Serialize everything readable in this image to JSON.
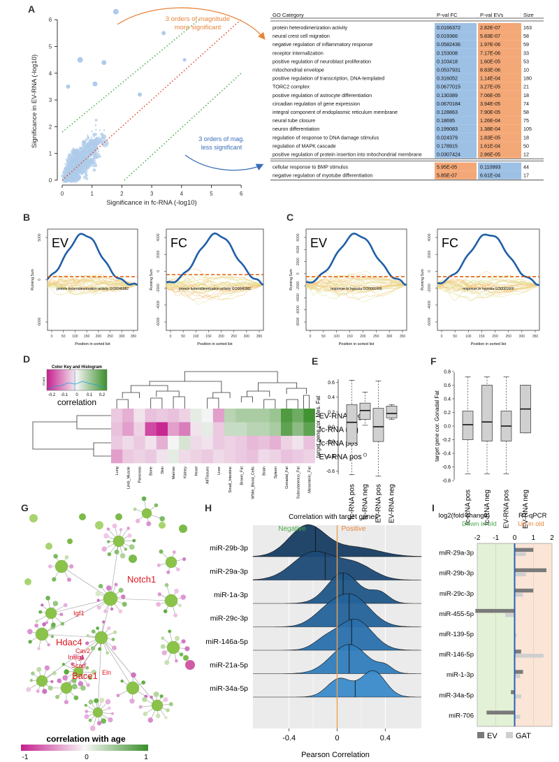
{
  "panel_labels": {
    "A": "A",
    "B": "B",
    "C": "C",
    "D": "D",
    "E": "E",
    "F": "F",
    "G": "G",
    "H": "H",
    "I": "I"
  },
  "colors": {
    "blue": "#9dc0e5",
    "orange": "#f4a877",
    "pink": "#c61f8e",
    "green": "#3a8f2a",
    "curve": "#1f5fa8",
    "dash": "#e06010"
  },
  "panelA": {
    "scatter": {
      "xlabel": "Significance in fc-RNA (-log10)",
      "ylabel": "Significance in EV-RNA (-log10)",
      "xticks": [
        "0",
        "1",
        "2",
        "3",
        "4",
        "5",
        "6"
      ],
      "yticks": [
        "0",
        "1",
        "2",
        "3",
        "4",
        "5",
        "6"
      ],
      "annot_top": [
        "3 orders of magnitude",
        "more significant"
      ],
      "annot_bottom": [
        "3 orders of mag.",
        "less significant"
      ]
    },
    "table": {
      "headers": [
        "GO Category",
        "P-val FC",
        "P-val EVs",
        "Size"
      ],
      "rows": [
        {
          "cat": "protein heterodimerization activity",
          "fc": "0.0166372",
          "ev": "2.82E-07",
          "size": "163"
        },
        {
          "cat": "neural crest cell migration",
          "fc": "0.019366",
          "ev": "5.83E-07",
          "size": "58"
        },
        {
          "cat": "negative regulation of inflammatory response",
          "fc": "0.0582436",
          "ev": "1.97E-06",
          "size": "59"
        },
        {
          "cat": "receptor internalization",
          "fc": "0.153008",
          "ev": "7.17E-06",
          "size": "33"
        },
        {
          "cat": "positive regulation of neuroblast proliferation",
          "fc": "0.103418",
          "ev": "1.60E-05",
          "size": "53"
        },
        {
          "cat": "mitochondrial envelope",
          "fc": "0.0537931",
          "ev": "8.83E-06",
          "size": "10"
        },
        {
          "cat": "positive regulation of transcription, DNA-templated",
          "fc": "0.316052",
          "ev": "1.14E-04",
          "size": "180"
        },
        {
          "cat": "TORC2 complex",
          "fc": "0.0677015",
          "ev": "3.27E-05",
          "size": "21"
        },
        {
          "cat": "positive regulation of astrocyte differentiation",
          "fc": "0.130389",
          "ev": "7.06E-05",
          "size": "18"
        },
        {
          "cat": "circadian regulation of gene expression",
          "fc": "0.0670184",
          "ev": "3.94E-05",
          "size": "74"
        },
        {
          "cat": "integral component of endoplasmic reticulum membrane",
          "fc": "0.128863",
          "ev": "7.90E-05",
          "size": "58"
        },
        {
          "cat": "neural tube closure",
          "fc": "0.18695",
          "ev": "1.26E-04",
          "size": "75"
        },
        {
          "cat": "neuron differentiation",
          "fc": "0.199083",
          "ev": "1.38E-04",
          "size": "105"
        },
        {
          "cat": "regulation of response to DNA damage stimulus",
          "fc": "0.024379",
          "ev": "1.83E-05",
          "size": "18"
        },
        {
          "cat": "regulation of MAPK cascade",
          "fc": "0.178915",
          "ev": "1.61E-04",
          "size": "50"
        },
        {
          "cat": "positive regulation of protein insertion into mitochondrial membrane",
          "fc": "0.0307424",
          "ev": "2.86E-05",
          "size": "12"
        }
      ],
      "rows2": [
        {
          "cat": "cellular response to BMP stimulus",
          "fc": "5.95E-05",
          "ev": "0.110993",
          "size": "44"
        },
        {
          "cat": "negative regulation of myotube differentiation",
          "fc": "5.85E-07",
          "ev": "6.61E-04",
          "size": "17"
        }
      ]
    }
  },
  "gsea": {
    "ylabel": "Running Sum",
    "xlabel": "Position in sorted list",
    "xticks": [
      "0",
      "50",
      "100",
      "150",
      "200",
      "250",
      "300",
      "350"
    ],
    "panels": [
      {
        "title": "EV",
        "term": "protein heterodimerization activity GO0046982",
        "yticks": [
          "5000",
          "0",
          "-5000"
        ]
      },
      {
        "title": "FC",
        "term": "protein heterodimerization activity GO0046982",
        "yticks": [
          "4000",
          "2000",
          "0",
          "-2000",
          "-4000",
          "-6000"
        ]
      },
      {
        "title": "EV",
        "term": "response to hypoxia GO0001666",
        "yticks": [
          "6000",
          "4000",
          "2000",
          "0",
          "-2000",
          "-4000",
          "-6000",
          "-8000"
        ]
      },
      {
        "title": "FC",
        "term": "response to hypoxia GO0001666",
        "yticks": [
          "4000",
          "2000",
          "0",
          "-2000",
          "-4000",
          "-6000"
        ]
      }
    ]
  },
  "chart_data": [
    {
      "type": "heatmap",
      "title": "correlation",
      "key_title": "Color Key and Histogram",
      "key_ylabel": "Count",
      "key_ticks": [
        "-0.2",
        "-0.1",
        "0",
        "0.1",
        "0.2"
      ],
      "rows": [
        "EV-RNA neg",
        "fc-RNA neg",
        "fc-RNA pos",
        "EV-RNA pos"
      ],
      "columns": [
        "Lung",
        "Limb_Muscle",
        "Pancreas",
        "Bone",
        "Skin",
        "Marrow",
        "Kidney",
        "Heart",
        "AllTissues",
        "Liver",
        "Small_Intestine",
        "Brown_Fat",
        "White_Blood_Cells",
        "Brain",
        "Spleen",
        "Gonadal_Fat",
        "Subcutaneous_Fat",
        "Mesenteric_Fat"
      ],
      "values": [
        [
          -0.05,
          -0.08,
          -0.02,
          -0.06,
          -0.05,
          -0.06,
          -0.04,
          0.02,
          0.0,
          -0.1,
          0.08,
          0.1,
          0.1,
          0.1,
          0.12,
          0.22,
          0.18,
          0.24
        ],
        [
          -0.06,
          -0.1,
          -0.04,
          -0.2,
          -0.24,
          -0.1,
          -0.14,
          -0.02,
          0.02,
          -0.05,
          0.06,
          0.06,
          0.08,
          0.08,
          0.1,
          0.2,
          0.14,
          0.2
        ],
        [
          -0.05,
          -0.03,
          -0.05,
          -0.02,
          -0.08,
          0.0,
          0.04,
          -0.03,
          -0.02,
          -0.05,
          -0.04,
          -0.05,
          -0.07,
          -0.06,
          -0.08,
          -0.04,
          -0.02,
          -0.06
        ],
        [
          -0.1,
          -0.05,
          -0.04,
          -0.05,
          -0.02,
          0.02,
          -0.03,
          -0.04,
          -0.05,
          -0.03,
          -0.04,
          -0.05,
          -0.06,
          -0.03,
          -0.04,
          -0.06,
          -0.05,
          -0.04
        ]
      ]
    },
    {
      "type": "box",
      "title": "target gene cor. Mes. Fat",
      "ylabel": "target gene cor. Mes. Fat",
      "yticks": [
        "0.6",
        "0.4",
        "0.2",
        "0.0",
        "-0.2",
        "-0.4",
        "-0.6"
      ],
      "ylim": [
        -0.7,
        0.7
      ],
      "categories": [
        "fc-RNA pos",
        "fc-RNA neg",
        "EV-RNA pos",
        "EV-RNA neg"
      ],
      "boxes": [
        {
          "min": -0.65,
          "q1": -0.22,
          "med": 0.06,
          "q3": 0.3,
          "max": 0.63,
          "outliers": []
        },
        {
          "min": 0.02,
          "q1": 0.1,
          "med": 0.22,
          "q3": 0.32,
          "max": 0.47,
          "outliers": [
            -0.38
          ]
        },
        {
          "min": -0.67,
          "q1": -0.2,
          "med": 0.0,
          "q3": 0.25,
          "max": 0.62,
          "outliers": []
        },
        {
          "min": 0.1,
          "q1": 0.12,
          "med": 0.18,
          "q3": 0.28,
          "max": 0.3,
          "outliers": []
        }
      ]
    },
    {
      "type": "box",
      "title": "target gene cor. Gonadal Fat",
      "ylabel": "target gene cor. Gonadal Fat",
      "yticks": [
        "0.8",
        "0.6",
        "0.4",
        "0.2",
        "0.0",
        "-0.2",
        "-0.4",
        "-0.6",
        "-0.8"
      ],
      "ylim": [
        -0.85,
        0.85
      ],
      "categories": [
        "fc-RNA pos",
        "fc-RNA neg",
        "EV-RNA pos",
        "EV-RNA neg"
      ],
      "boxes": [
        {
          "min": -0.7,
          "q1": -0.2,
          "med": 0.02,
          "q3": 0.22,
          "max": 0.72,
          "outliers": []
        },
        {
          "min": -0.7,
          "q1": -0.22,
          "med": 0.06,
          "q3": 0.6,
          "max": 0.72,
          "outliers": []
        },
        {
          "min": -0.7,
          "q1": -0.22,
          "med": 0.0,
          "q3": 0.22,
          "max": 0.72,
          "outliers": []
        },
        {
          "min": -0.1,
          "q1": -0.1,
          "med": 0.25,
          "q3": 0.6,
          "max": 0.6,
          "outliers": []
        }
      ]
    },
    {
      "type": "area",
      "title": "Correlation with target genes",
      "xlabel": "Pearson Correlation",
      "xticks": [
        "-0.4",
        "0",
        "0.4"
      ],
      "xlim": [
        -0.7,
        0.7
      ],
      "neg_label": "Negative",
      "pos_label": "Positive",
      "series": [
        {
          "name": "miR-29b-3p",
          "peaks": [
            [
              -0.25,
              0.15,
              1.0
            ],
            [
              0.15,
              0.2,
              0.3
            ]
          ],
          "median": -0.18
        },
        {
          "name": "miR-29a-3p",
          "peaks": [
            [
              -0.2,
              0.17,
              0.9
            ],
            [
              0.15,
              0.15,
              0.5
            ]
          ],
          "median": -0.1
        },
        {
          "name": "miR-1a-3p",
          "peaks": [
            [
              0.05,
              0.13,
              1.0
            ],
            [
              0.35,
              0.08,
              0.35
            ]
          ],
          "median": 0.05
        },
        {
          "name": "miR-29c-3p",
          "peaks": [
            [
              0.12,
              0.15,
              1.0
            ],
            [
              -0.1,
              0.12,
              0.35
            ]
          ],
          "median": 0.1
        },
        {
          "name": "miR-146a-5p",
          "peaks": [
            [
              0.15,
              0.14,
              1.0
            ],
            [
              -0.1,
              0.1,
              0.3
            ]
          ],
          "median": 0.12
        },
        {
          "name": "miR-21a-5p",
          "peaks": [
            [
              0.1,
              0.15,
              0.95
            ],
            [
              0.4,
              0.06,
              0.2
            ]
          ],
          "median": 0.1
        },
        {
          "name": "miR-34a-5p",
          "peaks": [
            [
              0.02,
              0.1,
              0.6
            ],
            [
              0.3,
              0.1,
              0.85
            ]
          ],
          "median": 0.15
        }
      ]
    },
    {
      "type": "bar",
      "title": "log2(fold change) RT-qPCR",
      "title_left": "log2(fold change)",
      "title_right": "RT-qPCR",
      "down_label": "Down in old",
      "up_label": "Up in old",
      "xticks": [
        "-2",
        "-1",
        "0",
        "1",
        "2"
      ],
      "xlim": [
        -2,
        2
      ],
      "categories": [
        "miR-29a-3p",
        "miR-29b-3p",
        "miR-29c-3p",
        "miR-455-5p",
        "miR-139-5p",
        "miR-146-5p",
        "miR-1-3p",
        "miR-34a-5p",
        "miR-706"
      ],
      "series": [
        {
          "name": "EV",
          "values": [
            1.0,
            1.7,
            1.0,
            -2.1,
            0.0,
            0.35,
            0.45,
            -0.2,
            -1.5
          ]
        },
        {
          "name": "GAT",
          "values": [
            0.6,
            0.6,
            0.45,
            -0.5,
            0.1,
            1.55,
            0.3,
            0.35,
            0.3
          ]
        }
      ]
    }
  ],
  "network": {
    "labels": [
      "Notch1",
      "Igf1",
      "Hdac4",
      "Cav2",
      "Insig1",
      "Scap",
      "Bace1",
      "Eln"
    ],
    "legend_title": "correlation with age",
    "legend_ticks": [
      "-1",
      "0",
      "1"
    ]
  }
}
